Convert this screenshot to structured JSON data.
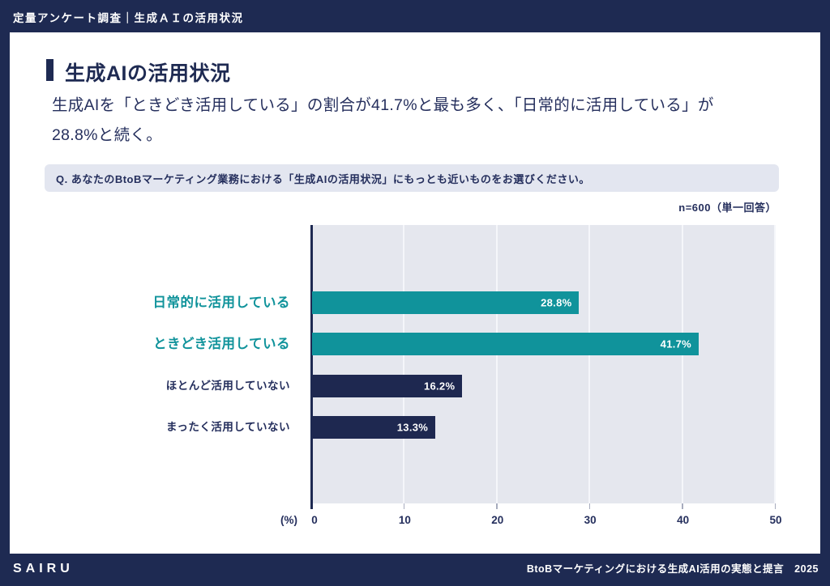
{
  "topbar": {
    "title": "定量アンケート調査｜生成ＡＩの活用状況"
  },
  "slide": {
    "title": "生成AIの活用状況",
    "lead_line1": "生成AIを「ときどき活用している」の割合が41.7%と最も多く、「日常的に活用している」が",
    "lead_line2": "28.8%と続く。",
    "question": "Q. あなたのBtoBマーケティング業務における「生成AIの活用状況」にもっとも近いものをお選びください。",
    "sample_note": "n=600（単一回答）"
  },
  "chart_data": {
    "type": "bar",
    "orientation": "horizontal",
    "categories": [
      "日常的に活用している",
      "ときどき活用している",
      "ほとんど活用していない",
      "まったく活用していない"
    ],
    "values": [
      28.8,
      41.7,
      16.2,
      13.3
    ],
    "value_labels": [
      "28.8%",
      "41.7%",
      "16.2%",
      "13.3%"
    ],
    "emphasis": [
      true,
      true,
      false,
      false
    ],
    "bar_colors": [
      "#10939B",
      "#10939B",
      "#1E2850",
      "#1E2850"
    ],
    "xlabel": "(%)",
    "xlim": [
      0,
      50
    ],
    "xticks": [
      0,
      10,
      20,
      30,
      40,
      50
    ],
    "grid": true,
    "legend": "none",
    "colors": {
      "teal": "#10939B",
      "navy": "#1E2850",
      "plot_bg": "#E5E7EE",
      "gridline": "#F5F6FA"
    }
  },
  "footer": {
    "logo": "SAIRU",
    "caption": "BtoBマーケティングにおける生成AI活用の実態と提言　2025"
  }
}
